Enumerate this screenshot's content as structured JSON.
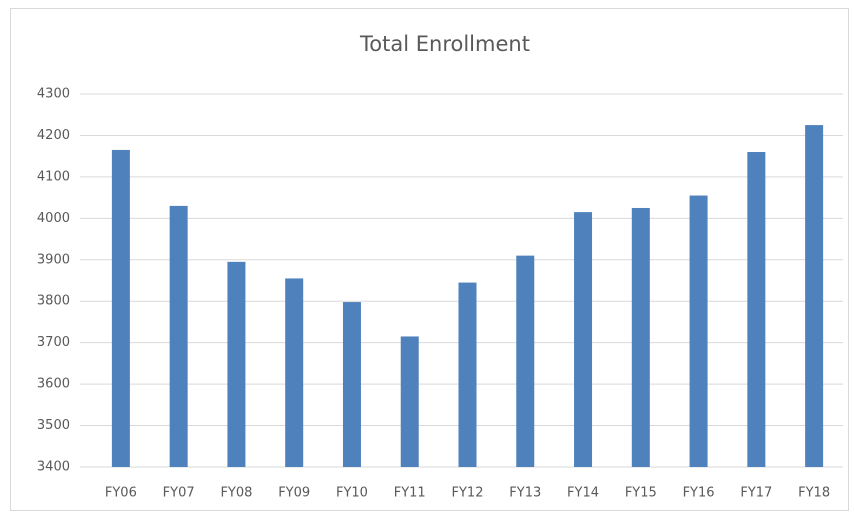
{
  "chart_data": {
    "type": "bar",
    "title": "Total Enrollment",
    "categories": [
      "FY06",
      "FY07",
      "FY08",
      "FY09",
      "FY10",
      "FY11",
      "FY12",
      "FY13",
      "FY14",
      "FY15",
      "FY16",
      "FY17",
      "FY18"
    ],
    "values": [
      4165,
      4030,
      3895,
      3855,
      3798,
      3715,
      3845,
      3910,
      4015,
      4025,
      4055,
      4160,
      4225
    ],
    "color": "#4f81bd",
    "ylim": [
      3400,
      4300
    ],
    "yticks": [
      3400,
      3500,
      3600,
      3700,
      3800,
      3900,
      4000,
      4100,
      4200,
      4300
    ],
    "grid": true
  }
}
